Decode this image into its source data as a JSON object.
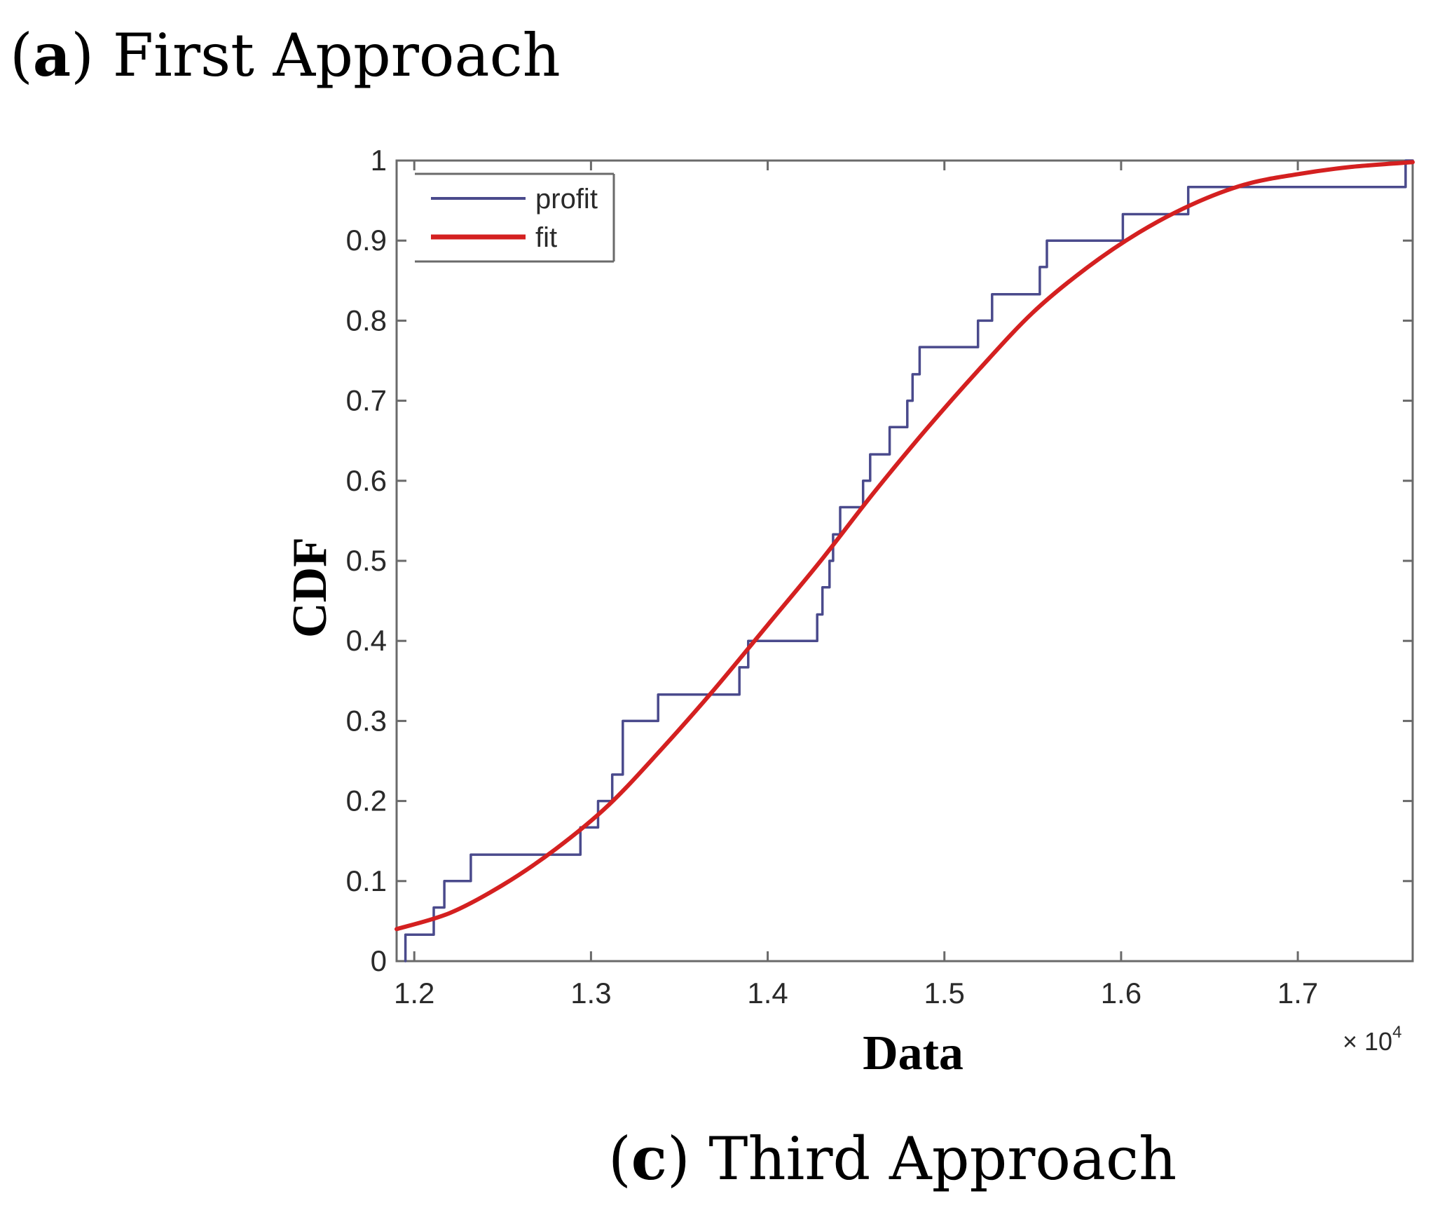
{
  "captions": {
    "top": {
      "prefix": "(",
      "letter": "a",
      "rest": ") First Approach"
    },
    "bottom": {
      "prefix": "(",
      "letter": "c",
      "rest": ") Third Approach"
    }
  },
  "chart_data": {
    "type": "line",
    "xlabel": "Data",
    "ylabel": "CDF",
    "x_multiplier_label": "× 10",
    "x_multiplier_exp": "4",
    "xlim": [
      1.19,
      1.765
    ],
    "ylim": [
      0,
      1
    ],
    "x_ticks": [
      1.2,
      1.3,
      1.4,
      1.5,
      1.6,
      1.7
    ],
    "x_tick_labels": [
      "1.2",
      "1.3",
      "1.4",
      "1.5",
      "1.6",
      "1.7"
    ],
    "y_ticks": [
      0,
      0.1,
      0.2,
      0.3,
      0.4,
      0.5,
      0.6,
      0.7,
      0.8,
      0.9,
      1
    ],
    "y_tick_labels": [
      "0",
      "0.1",
      "0.2",
      "0.3",
      "0.4",
      "0.5",
      "0.6",
      "0.7",
      "0.8",
      "0.9",
      "1"
    ],
    "grid": false,
    "legend_position": "top-left",
    "series": [
      {
        "name": "profit",
        "style": "step",
        "color": "#4a4a8c",
        "points": [
          [
            1.195,
            0
          ],
          [
            1.195,
            0.033
          ],
          [
            1.211,
            0.033
          ],
          [
            1.211,
            0.067
          ],
          [
            1.217,
            0.067
          ],
          [
            1.217,
            0.1
          ],
          [
            1.232,
            0.1
          ],
          [
            1.232,
            0.133
          ],
          [
            1.294,
            0.133
          ],
          [
            1.294,
            0.167
          ],
          [
            1.304,
            0.167
          ],
          [
            1.304,
            0.2
          ],
          [
            1.312,
            0.2
          ],
          [
            1.312,
            0.233
          ],
          [
            1.318,
            0.233
          ],
          [
            1.318,
            0.3
          ],
          [
            1.338,
            0.3
          ],
          [
            1.338,
            0.333
          ],
          [
            1.384,
            0.333
          ],
          [
            1.384,
            0.367
          ],
          [
            1.389,
            0.367
          ],
          [
            1.389,
            0.4
          ],
          [
            1.428,
            0.4
          ],
          [
            1.428,
            0.433
          ],
          [
            1.431,
            0.433
          ],
          [
            1.431,
            0.467
          ],
          [
            1.435,
            0.467
          ],
          [
            1.435,
            0.5
          ],
          [
            1.437,
            0.5
          ],
          [
            1.437,
            0.533
          ],
          [
            1.441,
            0.533
          ],
          [
            1.441,
            0.567
          ],
          [
            1.454,
            0.567
          ],
          [
            1.454,
            0.6
          ],
          [
            1.458,
            0.6
          ],
          [
            1.458,
            0.633
          ],
          [
            1.469,
            0.633
          ],
          [
            1.469,
            0.667
          ],
          [
            1.479,
            0.667
          ],
          [
            1.479,
            0.7
          ],
          [
            1.482,
            0.7
          ],
          [
            1.482,
            0.733
          ],
          [
            1.486,
            0.733
          ],
          [
            1.486,
            0.767
          ],
          [
            1.519,
            0.767
          ],
          [
            1.519,
            0.8
          ],
          [
            1.527,
            0.8
          ],
          [
            1.527,
            0.833
          ],
          [
            1.554,
            0.833
          ],
          [
            1.554,
            0.867
          ],
          [
            1.558,
            0.867
          ],
          [
            1.558,
            0.9
          ],
          [
            1.601,
            0.9
          ],
          [
            1.601,
            0.933
          ],
          [
            1.638,
            0.933
          ],
          [
            1.638,
            0.967
          ],
          [
            1.761,
            0.967
          ],
          [
            1.761,
            1
          ],
          [
            1.765,
            1
          ]
        ]
      },
      {
        "name": "fit",
        "style": "smooth",
        "color": "#d42020",
        "points": [
          [
            1.19,
            0.04
          ],
          [
            1.22,
            0.06
          ],
          [
            1.25,
            0.095
          ],
          [
            1.28,
            0.14
          ],
          [
            1.31,
            0.195
          ],
          [
            1.34,
            0.265
          ],
          [
            1.37,
            0.34
          ],
          [
            1.4,
            0.42
          ],
          [
            1.43,
            0.5
          ],
          [
            1.46,
            0.585
          ],
          [
            1.49,
            0.665
          ],
          [
            1.52,
            0.74
          ],
          [
            1.55,
            0.81
          ],
          [
            1.58,
            0.865
          ],
          [
            1.61,
            0.91
          ],
          [
            1.64,
            0.945
          ],
          [
            1.67,
            0.97
          ],
          [
            1.7,
            0.983
          ],
          [
            1.73,
            0.992
          ],
          [
            1.765,
            0.998
          ]
        ]
      }
    ]
  }
}
